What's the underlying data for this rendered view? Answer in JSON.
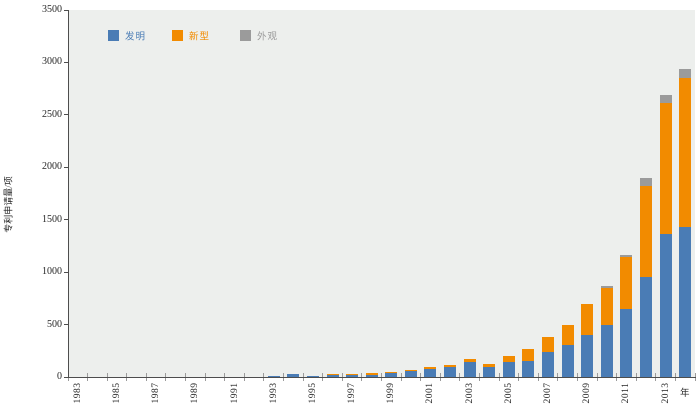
{
  "chart_data": {
    "type": "bar",
    "stacked": true,
    "title": "",
    "xlabel": "年",
    "ylabel": "专利申请量/项",
    "ylim": [
      0,
      3500
    ],
    "ytick_step": 500,
    "grid": false,
    "legend_position": "top",
    "plot_background": "#edefed",
    "categories": [
      "1983",
      "1984",
      "1985",
      "1986",
      "1987",
      "1988",
      "1989",
      "1990",
      "1991",
      "1992",
      "1993",
      "1994",
      "1995",
      "1996",
      "1997",
      "1998",
      "1999",
      "2000",
      "2001",
      "2002",
      "2003",
      "2004",
      "2005",
      "2006",
      "2007",
      "2008",
      "2009",
      "2010",
      "2011",
      "2012",
      "2013",
      "2014"
    ],
    "labeled_categories": [
      "1983",
      "1985",
      "1987",
      "1989",
      "1991",
      "1993",
      "1995",
      "1997",
      "1999",
      "2001",
      "2003",
      "2005",
      "2007",
      "2009",
      "2011",
      "2013"
    ],
    "series": [
      {
        "name": "发明",
        "key": "invention",
        "color": "#4a7cb5",
        "values": [
          0,
          0,
          0,
          0,
          0,
          0,
          0,
          0,
          0,
          0,
          5,
          28,
          8,
          30,
          25,
          15,
          35,
          55,
          76,
          95,
          140,
          100,
          140,
          150,
          240,
          305,
          405,
          500,
          645,
          950,
          1360,
          1430
        ]
      },
      {
        "name": "新型",
        "key": "utility-model",
        "color": "#f28b00",
        "values": [
          0,
          0,
          0,
          0,
          0,
          0,
          0,
          0,
          0,
          0,
          0,
          0,
          0,
          2,
          2,
          20,
          15,
          10,
          16,
          15,
          35,
          25,
          60,
          115,
          145,
          195,
          290,
          345,
          500,
          870,
          1255,
          1420
        ]
      },
      {
        "name": "外观",
        "key": "design",
        "color": "#9b9b9b",
        "values": [
          0,
          0,
          0,
          0,
          0,
          0,
          0,
          0,
          0,
          0,
          0,
          0,
          0,
          0,
          0,
          0,
          0,
          0,
          0,
          0,
          0,
          0,
          0,
          0,
          0,
          0,
          0,
          25,
          15,
          75,
          75,
          85
        ]
      }
    ]
  },
  "y_axis": {
    "title": "专利申请量/项",
    "tick_labels": [
      "0",
      "500",
      "1000",
      "1500",
      "2000",
      "2500",
      "3000",
      "3500"
    ]
  },
  "x_axis": {
    "title": "年"
  },
  "legend": {
    "items": [
      {
        "label": "发明",
        "color": "#4a7cb5"
      },
      {
        "label": "新型",
        "color": "#f28b00"
      },
      {
        "label": "外观",
        "color": "#9b9b9b"
      }
    ]
  }
}
